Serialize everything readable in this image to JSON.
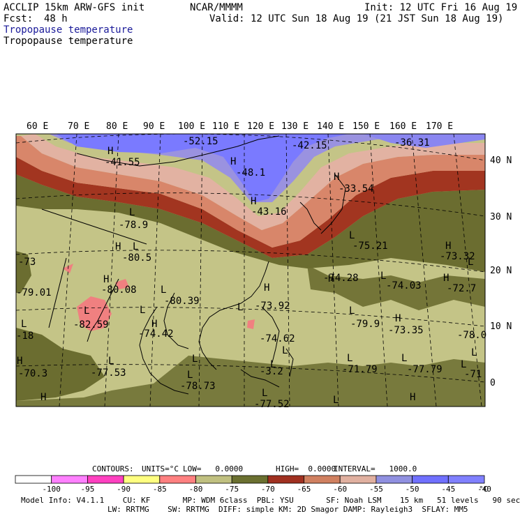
{
  "header": {
    "model": "ACCLIP 15km ARW-GFS init",
    "org": "NCAR/MMMM",
    "init": "Init: 12 UTC Fri 16 Aug 19",
    "fcst_label": "Fcst:",
    "fcst_value": "48 h",
    "valid": "Valid: 12 UTC Sun 18 Aug 19 (21 JST Sun 18 Aug 19)",
    "field_title_1": "Tropopause temperature",
    "field_title_2": "Tropopause temperature"
  },
  "axes": {
    "lon_labels": [
      "60 E",
      "70 E",
      "80 E",
      "90 E",
      "100 E",
      "110 E",
      "120 E",
      "130 E",
      "140 E",
      "150 E",
      "160 E",
      "170 E"
    ],
    "lat_labels": [
      "40 N",
      "30 N",
      "20 N",
      "10 N",
      "0"
    ]
  },
  "annotations": {
    "values": [
      "-52.15",
      "-42.15",
      "-36.31",
      "-41.55",
      "-48.1",
      "-33.54",
      "-43.16",
      "-78.9",
      "-75.21",
      "-73.32",
      "-80.5",
      "-74.28",
      "-74.03",
      "-72.7",
      "-73",
      "-80.08",
      "-79.01",
      "-80.39",
      "-73.92",
      "-82.59",
      "-79.9",
      "-73.35",
      "-74.62",
      "-74.42",
      "-78.0",
      "-70.3",
      "-77.53",
      "-71.79",
      "-77.79",
      "-71",
      "-78.73",
      "-3.2",
      "-77.52",
      "-18"
    ],
    "highs": [
      "H",
      "H",
      "H",
      "H",
      "H",
      "H",
      "H",
      "H",
      "H",
      "H",
      "H",
      "H",
      "H",
      "H",
      "H"
    ],
    "lows": [
      "L",
      "L",
      "L",
      "L",
      "L",
      "L",
      "L",
      "L",
      "L",
      "L",
      "L",
      "L",
      "L",
      "L",
      "L",
      "L",
      "L",
      "L",
      "L",
      "L",
      "L",
      "L"
    ]
  },
  "contour_info": {
    "contours_label": "CONTOURS:",
    "units": "UNITS=°C",
    "low": "LOW=   0.0000",
    "high": "HIGH=  0.0000",
    "interval": "INTERVAL=   1000.0"
  },
  "colorbar": {
    "colors": [
      "#ffffff",
      "#ff80ff",
      "#ff40c0",
      "#ffff80",
      "#ff8080",
      "#c0c080",
      "#6b7030",
      "#a03020",
      "#d08060",
      "#e0b0a0",
      "#9090e0",
      "#7070ff",
      "#8080ff"
    ],
    "labels": [
      "-100",
      "-95",
      "-90",
      "-85",
      "-80",
      "-75",
      "-70",
      "-65",
      "-60",
      "-55",
      "-50",
      "-45",
      "-40"
    ],
    "unit": "°C"
  },
  "model_info": {
    "line1": "Model Info: V4.1.1    CU: KF       MP: WDM 6class  PBL: YSU       SF: Noah LSM    15 km   51 levels   90 sec",
    "line2": "LW: RRTMG    SW: RRTMG  DIFF: simple KM: 2D Smagor DAMP: Rayleigh3  SFLAY: MM5"
  }
}
